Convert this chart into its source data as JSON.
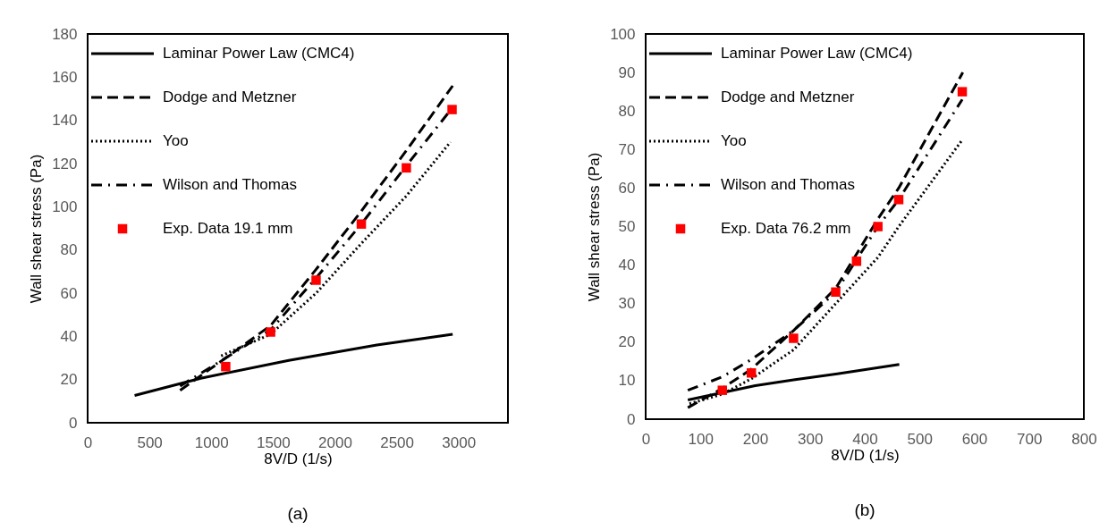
{
  "chart_data": [
    {
      "type": "line",
      "xlabel": "8V/D (1/s)",
      "ylabel": "Wall shear stress (Pa)",
      "annotations": [
        "(a)"
      ],
      "xlim": [
        0,
        3400
      ],
      "xticks": [
        0,
        500,
        1000,
        1500,
        2000,
        2500,
        3000
      ],
      "ylim": [
        0,
        180
      ],
      "yticks": [
        0,
        20,
        40,
        60,
        80,
        100,
        120,
        140,
        160,
        180
      ],
      "grid": false,
      "legend": "top left",
      "series": [
        {
          "name": "Laminar Power Law (CMC4)",
          "type": "line",
          "color": "#000000",
          "line_style": "solid",
          "marker": "none",
          "x": [
            380,
            915,
            1627,
            2340,
            2953
          ],
          "values": [
            12.6,
            20.6,
            28.9,
            36,
            41
          ]
        },
        {
          "name": "Dodge and Metzner",
          "type": "line",
          "color": "#000000",
          "line_style": "dashed",
          "marker": "none",
          "x": [
            748,
            1117,
            1480,
            1848,
            2214,
            2578,
            2953
          ],
          "values": [
            15,
            30,
            45,
            71,
            98,
            126,
            156
          ]
        },
        {
          "name": "Yoo",
          "type": "line",
          "color": "#000000",
          "line_style": "dotted",
          "marker": "none",
          "x": [
            1080,
            1480,
            1848,
            2214,
            2578,
            2935
          ],
          "values": [
            31,
            41,
            60,
            83,
            105,
            130
          ]
        },
        {
          "name": "Wilson and Thomas",
          "type": "line",
          "color": "#000000",
          "line_style": "dashdot",
          "marker": "none",
          "x": [
            748,
            1117,
            1480,
            1848,
            2214,
            2578,
            2953
          ],
          "values": [
            17,
            30,
            43,
            67,
            92,
            119,
            146
          ]
        },
        {
          "name": "Exp. Data 19.1 mm",
          "type": "scatter",
          "color": "#ff0000",
          "marker": "square",
          "x": [
            1117,
            1480,
            1848,
            2214,
            2578,
            2948
          ],
          "values": [
            26,
            42,
            66,
            92,
            118,
            145
          ]
        }
      ]
    },
    {
      "type": "line",
      "xlabel": "8V/D (1/s)",
      "ylabel": "Wall shear stress (Pa)",
      "annotations": [
        "(b)"
      ],
      "xlim": [
        0,
        800
      ],
      "xticks": [
        0,
        100,
        200,
        300,
        400,
        500,
        600,
        700,
        800
      ],
      "ylim": [
        0,
        100
      ],
      "yticks": [
        0,
        10,
        20,
        30,
        40,
        50,
        60,
        70,
        80,
        90,
        100
      ],
      "grid": false,
      "legend": "top left",
      "series": [
        {
          "name": "Laminar Power Law (CMC4)",
          "type": "line",
          "color": "#000000",
          "line_style": "solid",
          "marker": "none",
          "x": [
            77,
            200,
            270,
            350,
            463
          ],
          "values": [
            5,
            8.7,
            10.2,
            11.8,
            14.2
          ]
        },
        {
          "name": "Dodge and Metzner",
          "type": "line",
          "color": "#000000",
          "line_style": "dashed",
          "marker": "none",
          "x": [
            77,
            140,
            193,
            270,
            347,
            424,
            462,
            579
          ],
          "values": [
            3,
            8,
            13,
            23,
            34,
            52,
            60,
            90
          ]
        },
        {
          "name": "Yoo",
          "type": "line",
          "color": "#000000",
          "line_style": "dotted",
          "marker": "none",
          "x": [
            80,
            140,
            193,
            270,
            347,
            424,
            462,
            578
          ],
          "values": [
            4,
            6.5,
            10.5,
            18,
            30,
            42,
            50,
            72.5
          ]
        },
        {
          "name": "Wilson and Thomas",
          "type": "line",
          "color": "#000000",
          "line_style": "dashdot",
          "marker": "none",
          "x": [
            77,
            140,
            193,
            270,
            347,
            424,
            462,
            578
          ],
          "values": [
            7.5,
            11,
            15.5,
            23,
            33,
            50,
            57,
            83
          ]
        },
        {
          "name": "Exp. Data 76.2 mm",
          "type": "scatter",
          "color": "#ff0000",
          "marker": "square",
          "x": [
            140,
            193,
            270,
            347,
            385,
            424,
            462,
            578
          ],
          "values": [
            7.5,
            12,
            21,
            33,
            41,
            50,
            57,
            85
          ]
        }
      ]
    }
  ]
}
